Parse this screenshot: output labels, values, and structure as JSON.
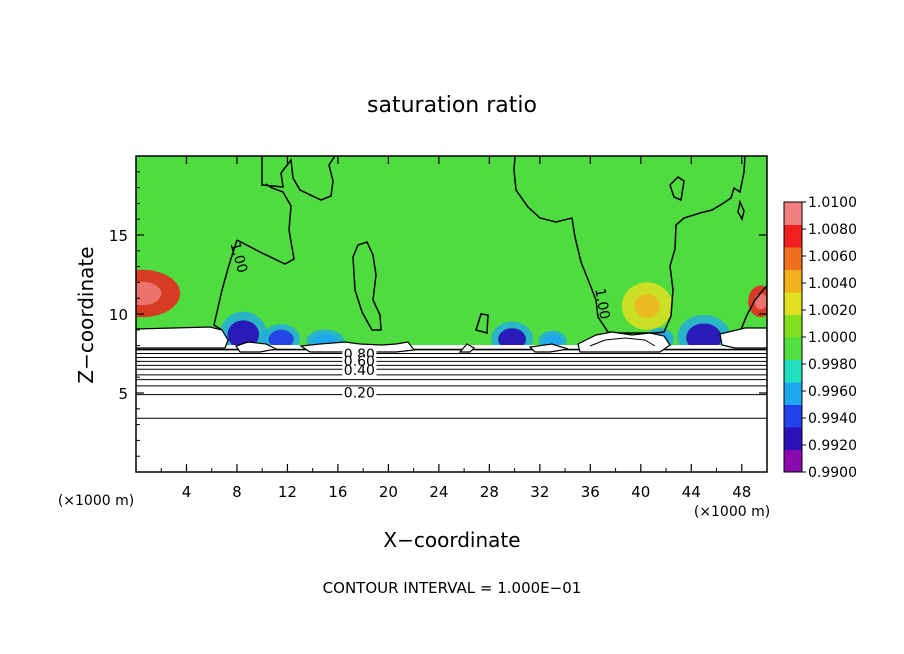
{
  "chart_data": {
    "type": "heatmap",
    "title": "saturation ratio",
    "xlabel": "X−coordinate",
    "ylabel": "Z−coordinate",
    "x_unit": "(×1000 m)",
    "footer": "CONTOUR INTERVAL = 1.000E−01",
    "xlim": [
      0,
      50
    ],
    "ylim": [
      0,
      20
    ],
    "x_ticks": [
      {
        "value": 4,
        "label": "4"
      },
      {
        "value": 8,
        "label": "8"
      },
      {
        "value": 12,
        "label": "12"
      },
      {
        "value": 16,
        "label": "16"
      },
      {
        "value": 20,
        "label": "20"
      },
      {
        "value": 24,
        "label": "24"
      },
      {
        "value": 28,
        "label": "28"
      },
      {
        "value": 32,
        "label": "32"
      },
      {
        "value": 36,
        "label": "36"
      },
      {
        "value": 40,
        "label": "40"
      },
      {
        "value": 44,
        "label": "44"
      },
      {
        "value": 48,
        "label": "48"
      }
    ],
    "y_ticks": [
      {
        "value": 5,
        "label": "5"
      },
      {
        "value": 10,
        "label": "10"
      },
      {
        "value": 15,
        "label": "15"
      }
    ],
    "colorbar": {
      "min": 0.99,
      "max": 1.01,
      "labels": [
        "1.0100",
        "1.0080",
        "1.0060",
        "1.0040",
        "1.0020",
        "1.0000",
        "0.9980",
        "0.9960",
        "0.9940",
        "0.9920",
        "0.9900"
      ],
      "colors": [
        "#8a0ab0",
        "#2a12b8",
        "#2440e8",
        "#1ea8f0",
        "#20e0c0",
        "#50e040",
        "#80e020",
        "#e0e020",
        "#f0b020",
        "#f07020",
        "#f02020",
        "#f08080"
      ]
    },
    "contour_labels": [
      {
        "text": "1.00",
        "x": 7.8,
        "z": 13.5
      },
      {
        "text": "1.00",
        "x": 36.6,
        "z": 10.6
      },
      {
        "text": "0.80",
        "x": 17.7,
        "z": 7.15
      },
      {
        "text": "0.60",
        "x": 17.7,
        "z": 6.7
      },
      {
        "text": "0.40",
        "x": 17.7,
        "z": 6.15
      },
      {
        "text": "0.20",
        "x": 17.7,
        "z": 4.7
      }
    ],
    "stable_layer_contours_z": [
      7.75,
      7.5,
      7.25,
      7.0,
      6.75,
      6.5,
      6.15,
      5.85,
      5.45,
      4.9,
      3.4
    ],
    "warm_plumes": [
      {
        "x": 0.5,
        "z": 11.3,
        "w": 6,
        "h": 3,
        "value": 1.008
      },
      {
        "x": 40.5,
        "z": 10.5,
        "w": 4,
        "h": 3,
        "value": 1.003
      },
      {
        "x": 49.5,
        "z": 10.8,
        "w": 2,
        "h": 2,
        "value": 1.007
      }
    ],
    "cold_pools": [
      {
        "x": 8.5,
        "z": 8.7,
        "w": 2.5,
        "h": 1.8,
        "value": 0.9925
      },
      {
        "x": 11.5,
        "z": 8.4,
        "w": 2,
        "h": 1.2,
        "value": 0.994
      },
      {
        "x": 15,
        "z": 8.3,
        "w": 2,
        "h": 0.9,
        "value": 0.996
      },
      {
        "x": 29.8,
        "z": 8.4,
        "w": 2.2,
        "h": 1.4,
        "value": 0.993
      },
      {
        "x": 33,
        "z": 8.3,
        "w": 1.5,
        "h": 0.8,
        "value": 0.996
      },
      {
        "x": 45,
        "z": 8.5,
        "w": 2.8,
        "h": 1.8,
        "value": 0.9925
      },
      {
        "x": 41.5,
        "z": 8.4,
        "w": 1.5,
        "h": 0.9,
        "value": 0.995
      }
    ]
  }
}
